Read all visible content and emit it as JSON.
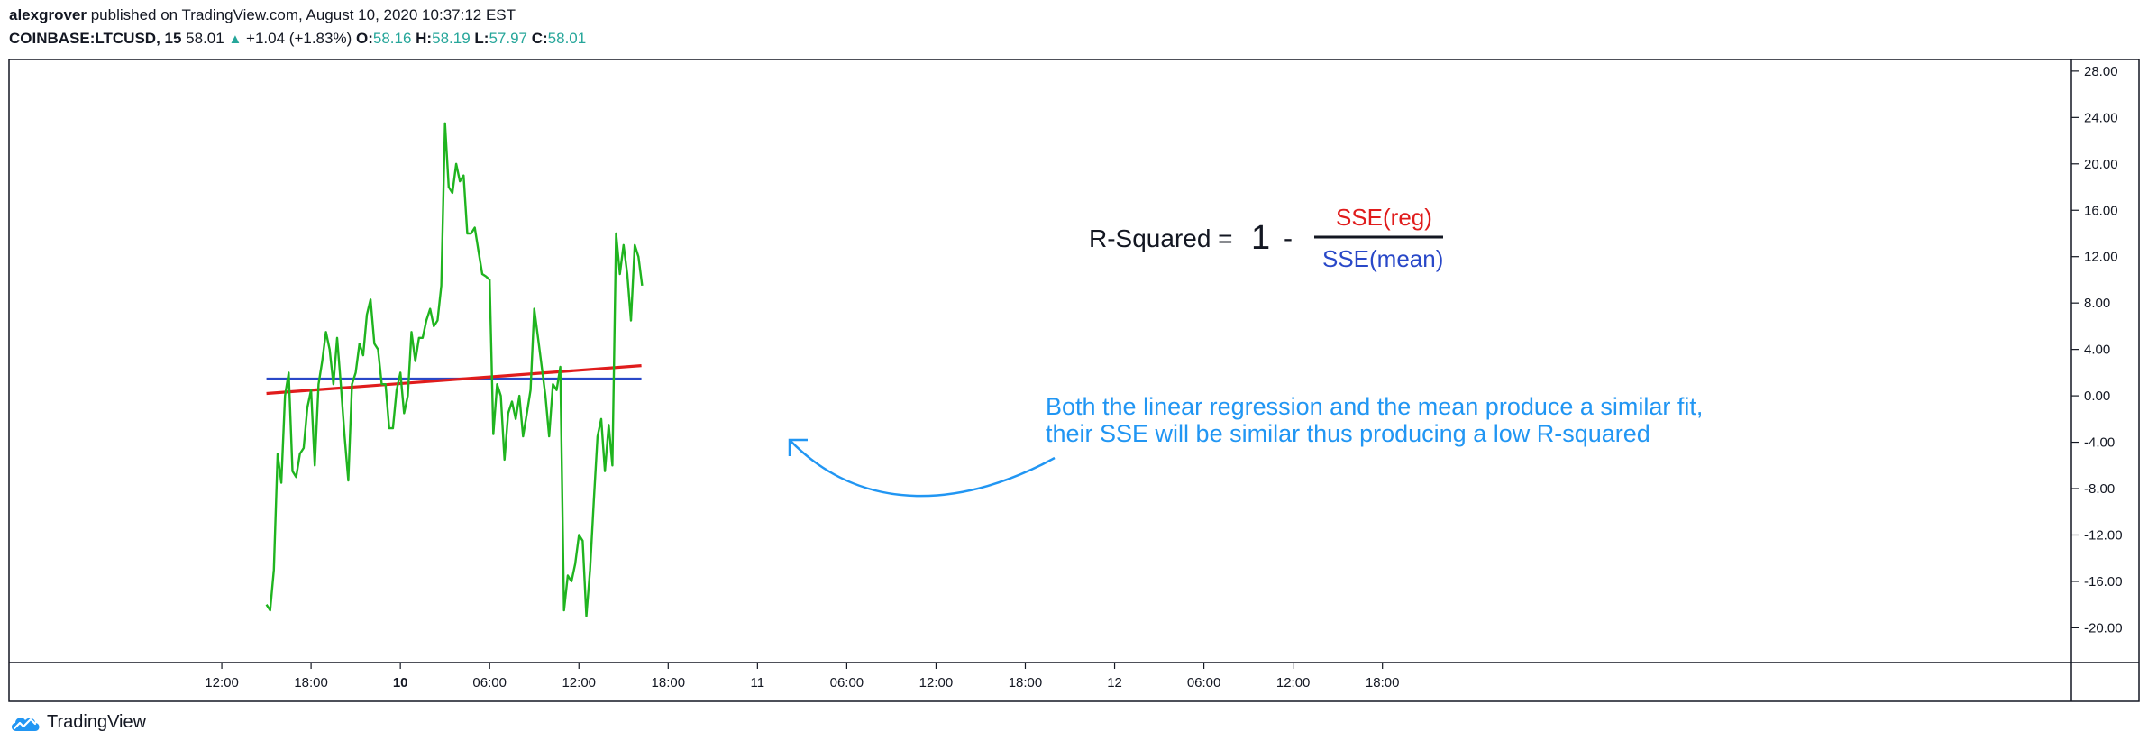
{
  "header": {
    "author": "alexgrover",
    "published": " published on TradingView.com, August 10, 2020 10:37:12 EST",
    "symbol": "COINBASE:LTCUSD, 15",
    "last": "58.01",
    "up_glyph": "▲",
    "change": "+1.04 (+1.83%)",
    "o_label": "O:",
    "o_value": "58.16",
    "h_label": "H:",
    "h_value": "58.19",
    "l_label": "L:",
    "l_value": "57.97",
    "c_label": "C:",
    "c_value": "58.01"
  },
  "footer": {
    "brand": "TradingView",
    "logo_icon": "tradingview-cloud-icon"
  },
  "annotations": {
    "formula_left": "R-Squared =",
    "formula_one": "1",
    "formula_minus": "-",
    "numerator": "SSE(reg)",
    "denominator": "SSE(mean)",
    "note_line1": "Both the linear regression and the mean produce a similar fit,",
    "note_line2": "their SSE will be similar thus producing a low R-squared"
  },
  "colors": {
    "price": "#1fb41f",
    "regression": "#e01c1c",
    "mean": "#2948c8",
    "annotation": "#2196f3",
    "numerator": "#e01c1c",
    "denominator": "#2948c8",
    "teal": "#26a69a"
  },
  "chart_data": {
    "type": "line",
    "ylim": [
      -23.0,
      29.0
    ],
    "y_ticks": [
      28,
      24,
      20,
      16,
      12,
      8,
      4,
      0,
      -4,
      -8,
      -12,
      -16,
      -20
    ],
    "y_tick_labels": [
      "28.00",
      "24.00",
      "20.00",
      "16.00",
      "12.00",
      "8.00",
      "4.00",
      "0.00",
      "-4.00",
      "-8.00",
      "-12.00",
      "-16.00",
      "-20.00"
    ],
    "x_range_hours": [
      -26.3,
      112.3
    ],
    "x_ticks": [
      {
        "hour": -12,
        "label": "12:00",
        "bold": false
      },
      {
        "hour": -6,
        "label": "18:00",
        "bold": false
      },
      {
        "hour": 0,
        "label": "10",
        "bold": true
      },
      {
        "hour": 6,
        "label": "06:00",
        "bold": false
      },
      {
        "hour": 12,
        "label": "12:00",
        "bold": false
      },
      {
        "hour": 18,
        "label": "18:00",
        "bold": false
      },
      {
        "hour": 24,
        "label": "11",
        "bold": false
      },
      {
        "hour": 30,
        "label": "06:00",
        "bold": false
      },
      {
        "hour": 36,
        "label": "12:00",
        "bold": false
      },
      {
        "hour": 42,
        "label": "18:00",
        "bold": false
      },
      {
        "hour": 48,
        "label": "12",
        "bold": false
      },
      {
        "hour": 54,
        "label": "06:00",
        "bold": false
      },
      {
        "hour": 60,
        "label": "12:00",
        "bold": false
      },
      {
        "hour": 66,
        "label": "18:00",
        "bold": false
      }
    ],
    "series": [
      {
        "name": "",
        "points": [
          [
            -9.0,
            -18.0
          ],
          [
            -8.75,
            -18.5
          ],
          [
            -8.5,
            -15.0
          ],
          [
            -8.25,
            -5.0
          ],
          [
            -8.0,
            -7.5
          ],
          [
            -7.75,
            0.0
          ],
          [
            -7.5,
            2.0
          ],
          [
            -7.25,
            -6.5
          ],
          [
            -7.0,
            -7.0
          ],
          [
            -6.75,
            -5.0
          ],
          [
            -6.5,
            -4.5
          ],
          [
            -6.25,
            -1.0
          ],
          [
            -6.0,
            0.5
          ],
          [
            -5.75,
            -6.0
          ],
          [
            -5.5,
            1.0
          ],
          [
            -5.25,
            3.0
          ],
          [
            -5.0,
            5.5
          ],
          [
            -4.75,
            4.0
          ],
          [
            -4.5,
            1.0
          ],
          [
            -4.25,
            5.0
          ],
          [
            -4.0,
            1.0
          ],
          [
            -3.75,
            -3.5
          ],
          [
            -3.5,
            -7.3
          ],
          [
            -3.25,
            1.0
          ],
          [
            -3.0,
            2.0
          ],
          [
            -2.75,
            4.5
          ],
          [
            -2.5,
            3.5
          ],
          [
            -2.25,
            7.0
          ],
          [
            -2.0,
            8.3
          ],
          [
            -1.75,
            4.5
          ],
          [
            -1.5,
            4.0
          ],
          [
            -1.25,
            1.0
          ],
          [
            -1.0,
            1.0
          ],
          [
            -0.75,
            -2.8
          ],
          [
            -0.5,
            -2.8
          ],
          [
            -0.25,
            0.5
          ],
          [
            0.0,
            2.0
          ],
          [
            0.25,
            -1.5
          ],
          [
            0.5,
            0.0
          ],
          [
            0.75,
            5.5
          ],
          [
            1.0,
            3.0
          ],
          [
            1.25,
            5.0
          ],
          [
            1.5,
            5.0
          ],
          [
            1.75,
            6.5
          ],
          [
            2.0,
            7.5
          ],
          [
            2.25,
            6.0
          ],
          [
            2.5,
            6.5
          ],
          [
            2.75,
            9.5
          ],
          [
            3.0,
            23.5
          ],
          [
            3.25,
            18.0
          ],
          [
            3.5,
            17.5
          ],
          [
            3.75,
            20.0
          ],
          [
            4.0,
            18.5
          ],
          [
            4.25,
            19.0
          ],
          [
            4.5,
            14.0
          ],
          [
            4.75,
            14.0
          ],
          [
            5.0,
            14.5
          ],
          [
            5.25,
            12.5
          ],
          [
            5.5,
            10.5
          ],
          [
            5.75,
            10.3
          ],
          [
            6.0,
            10.0
          ],
          [
            6.25,
            -3.3
          ],
          [
            6.5,
            1.0
          ],
          [
            6.75,
            0.0
          ],
          [
            7.0,
            -5.5
          ],
          [
            7.25,
            -1.5
          ],
          [
            7.5,
            -0.5
          ],
          [
            7.75,
            -2.0
          ],
          [
            8.0,
            0.0
          ],
          [
            8.25,
            -3.5
          ],
          [
            8.5,
            -1.5
          ],
          [
            8.75,
            0.5
          ],
          [
            9.0,
            7.5
          ],
          [
            9.25,
            5.0
          ],
          [
            9.5,
            2.5
          ],
          [
            9.75,
            0.0
          ],
          [
            10.0,
            -3.5
          ],
          [
            10.25,
            1.0
          ],
          [
            10.5,
            0.5
          ],
          [
            10.75,
            2.5
          ],
          [
            11.0,
            -18.5
          ],
          [
            11.25,
            -15.5
          ],
          [
            11.5,
            -16.0
          ],
          [
            11.75,
            -14.5
          ],
          [
            12.0,
            -12.0
          ],
          [
            12.25,
            -12.5
          ],
          [
            12.5,
            -19.0
          ],
          [
            12.75,
            -15.0
          ],
          [
            13.0,
            -9.0
          ],
          [
            13.25,
            -3.5
          ],
          [
            13.5,
            -2.0
          ],
          [
            13.75,
            -6.5
          ],
          [
            14.0,
            -2.5
          ],
          [
            14.25,
            -6.0
          ],
          [
            14.5,
            14.0
          ],
          [
            14.75,
            10.5
          ],
          [
            15.0,
            13.0
          ],
          [
            15.25,
            10.5
          ],
          [
            15.5,
            6.5
          ],
          [
            15.75,
            13.0
          ],
          [
            16.0,
            12.0
          ],
          [
            16.25,
            9.5
          ]
        ]
      }
    ],
    "regression_line": {
      "from": [
        -9.0,
        0.2
      ],
      "to": [
        16.2,
        2.6
      ]
    },
    "mean_line": {
      "from": [
        -9.0,
        1.45
      ],
      "to": [
        16.2,
        1.45
      ]
    }
  }
}
